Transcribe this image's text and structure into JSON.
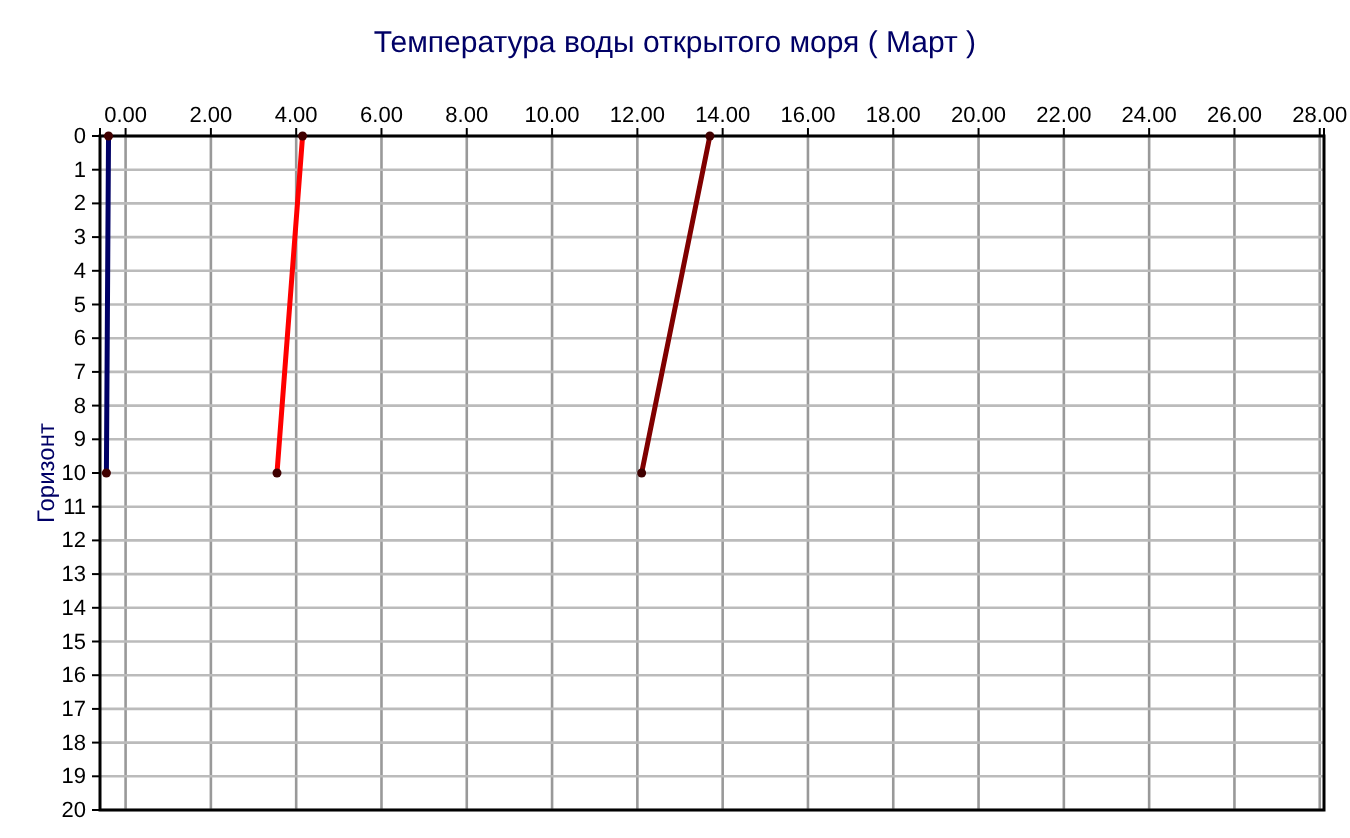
{
  "chart_data": {
    "type": "line",
    "title": "Температура воды открытого моря     ( Март )",
    "ylabel": "Горизонт",
    "xlim": [
      -0.6,
      28.1
    ],
    "ylim": [
      20,
      0
    ],
    "xticks": [
      {
        "value": 0,
        "label": "0.00"
      },
      {
        "value": 2,
        "label": "2.00"
      },
      {
        "value": 4,
        "label": "4.00"
      },
      {
        "value": 6,
        "label": "6.00"
      },
      {
        "value": 8,
        "label": "8.00"
      },
      {
        "value": 10,
        "label": "10.00"
      },
      {
        "value": 12,
        "label": "12.00"
      },
      {
        "value": 14,
        "label": "14.00"
      },
      {
        "value": 16,
        "label": "16.00"
      },
      {
        "value": 18,
        "label": "18.00"
      },
      {
        "value": 20,
        "label": "20.00"
      },
      {
        "value": 22,
        "label": "22.00"
      },
      {
        "value": 24,
        "label": "24.00"
      },
      {
        "value": 26,
        "label": "26.00"
      },
      {
        "value": 28,
        "label": "28.00"
      }
    ],
    "yticks": [
      0,
      1,
      2,
      3,
      4,
      5,
      6,
      7,
      8,
      9,
      10,
      11,
      12,
      13,
      14,
      15,
      16,
      17,
      18,
      19,
      20
    ],
    "grid": true,
    "marker": "circle",
    "line_style": "solid",
    "series": [
      {
        "color": "#000066",
        "x": [
          -0.4,
          -0.45
        ],
        "values": [
          0,
          10
        ]
      },
      {
        "color": "#ff0000",
        "x": [
          4.15,
          3.55
        ],
        "values": [
          0,
          10
        ]
      },
      {
        "color": "#800000",
        "x": [
          13.7,
          12.1
        ],
        "values": [
          0,
          10
        ]
      }
    ]
  }
}
